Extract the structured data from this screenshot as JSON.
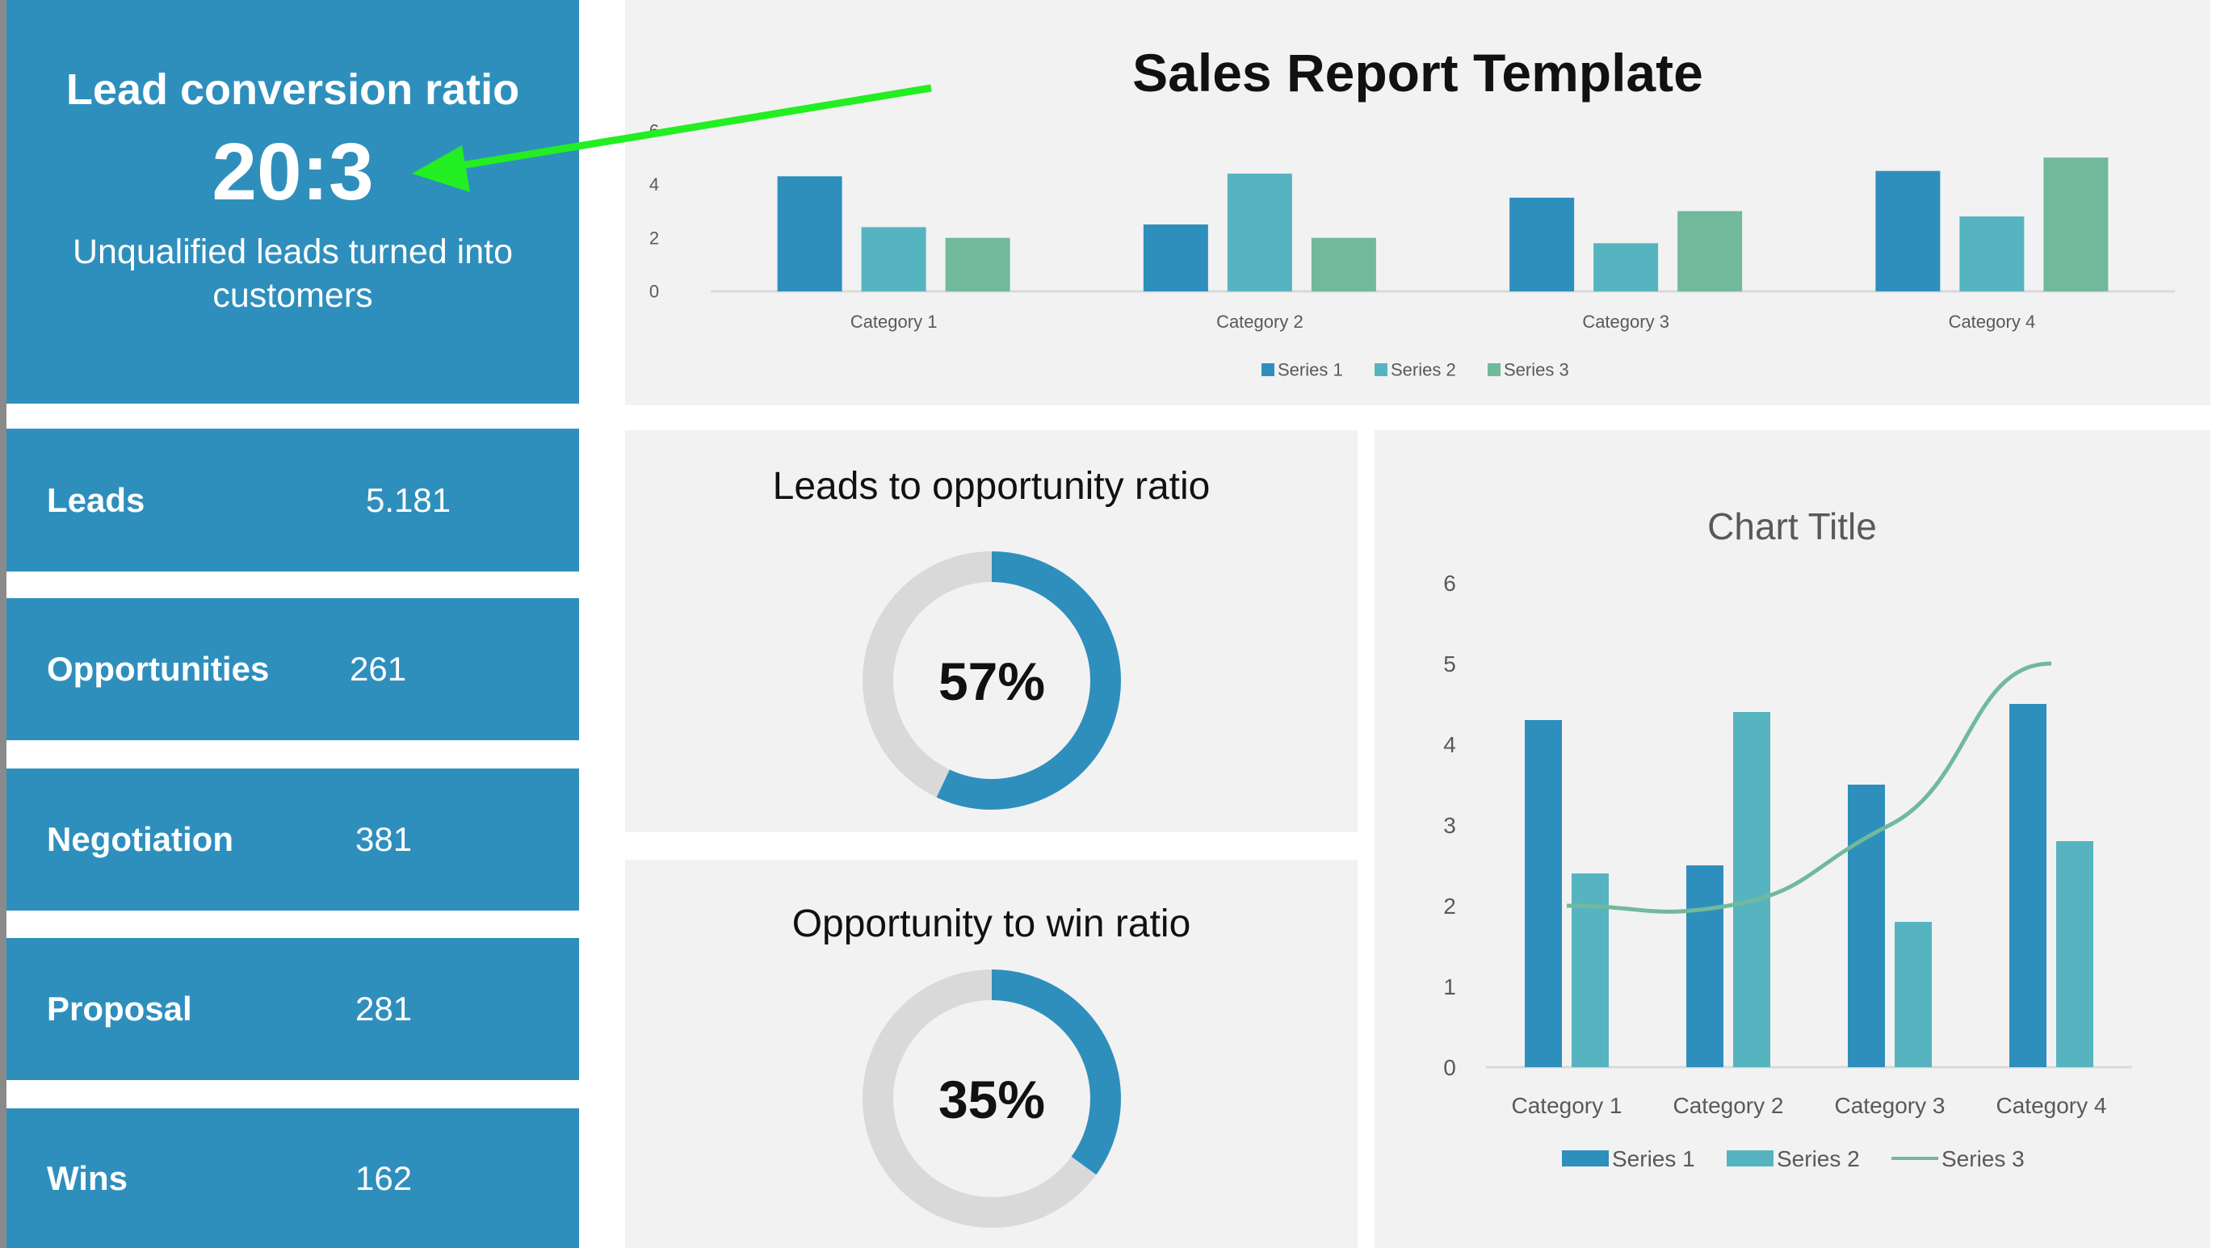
{
  "kpi": {
    "title": "Lead conversion ratio",
    "value": "20:3",
    "subtitle": "Unqualified leads turned into customers"
  },
  "metrics": [
    {
      "label": "Leads",
      "value": "5.181"
    },
    {
      "label": "Opportunities",
      "value": "261"
    },
    {
      "label": "Negotiation",
      "value": "381"
    },
    {
      "label": "Proposal",
      "value": "281"
    },
    {
      "label": "Wins",
      "value": "162"
    }
  ],
  "report_title": "Sales Report Template",
  "donuts": [
    {
      "title": "Leads to opportunity ratio",
      "label": "57%",
      "percent": 57
    },
    {
      "title": "Opportunity to win ratio",
      "label": "35%",
      "percent": 35
    }
  ],
  "colors": {
    "panel_blue": "#2e8fbd",
    "series1": "#2e8fbd",
    "series2": "#56b4c0",
    "series3": "#72b99c",
    "donut_track": "#d9d9d9",
    "arrow": "#22ee22"
  },
  "annotation": {
    "type": "arrow",
    "color": "#22ee22",
    "points_to": "kpi.value"
  },
  "chart_data": [
    {
      "type": "bar",
      "title": "",
      "categories": [
        "Category 1",
        "Category 2",
        "Category 3",
        "Category 4"
      ],
      "yticks": [
        0,
        2,
        4,
        6
      ],
      "ylim": [
        0,
        6
      ],
      "grid": false,
      "legend": "bottom",
      "series": [
        {
          "name": "Series 1",
          "values": [
            4.3,
            2.5,
            3.5,
            4.5
          ]
        },
        {
          "name": "Series 2",
          "values": [
            2.4,
            4.4,
            1.8,
            2.8
          ]
        },
        {
          "name": "Series 3",
          "values": [
            2,
            2,
            3,
            5
          ]
        }
      ]
    },
    {
      "type": "bar+line",
      "title": "Chart Title",
      "categories": [
        "Category 1",
        "Category 2",
        "Category 3",
        "Category 4"
      ],
      "yticks": [
        0,
        1,
        2,
        3,
        4,
        5,
        6
      ],
      "ylim": [
        0,
        6
      ],
      "grid": false,
      "legend": "bottom",
      "series": [
        {
          "name": "Series 1",
          "type": "bar",
          "values": [
            4.3,
            2.5,
            3.5,
            4.5
          ]
        },
        {
          "name": "Series 2",
          "type": "bar",
          "values": [
            2.4,
            4.4,
            1.8,
            2.8
          ]
        },
        {
          "name": "Series 3",
          "type": "line",
          "values": [
            2,
            2,
            3,
            5
          ]
        }
      ]
    }
  ]
}
